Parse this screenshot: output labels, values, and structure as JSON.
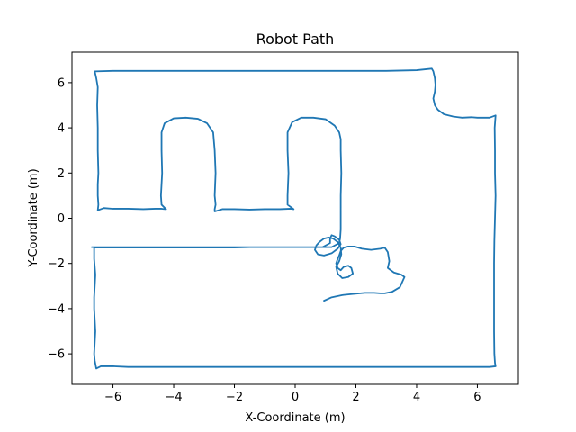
{
  "chart_data": {
    "type": "line",
    "title": "Robot Path",
    "xlabel": "X-Coordinate (m)",
    "ylabel": "Y-Coordinate (m)",
    "xlim": [
      -7.35,
      7.35
    ],
    "ylim": [
      -7.35,
      7.35
    ],
    "xticks": [
      -6,
      -4,
      -2,
      0,
      2,
      4,
      6
    ],
    "yticks": [
      -6,
      -4,
      -2,
      0,
      2,
      4,
      6
    ],
    "xtick_labels": [
      "−6",
      "−4",
      "−2",
      "0",
      "2",
      "4",
      "6"
    ],
    "ytick_labels": [
      "−6",
      "−4",
      "−2",
      "0",
      "2",
      "4",
      "6"
    ],
    "grid": false,
    "color": "#1f77b4",
    "series": [
      {
        "x": [
          0.95,
          1.2,
          1.55,
          1.9,
          2.3,
          2.6,
          2.8,
          2.95,
          3.2,
          3.45,
          3.6,
          3.5,
          3.25,
          3.05,
          3.1,
          3.05,
          2.95,
          2.8,
          2.5,
          2.2,
          1.95,
          1.75,
          1.6,
          1.5,
          1.45,
          1.4,
          1.35,
          1.4,
          1.5,
          1.6,
          1.75,
          1.85,
          1.9,
          1.75,
          1.55,
          1.4,
          1.35,
          1.45,
          1.52,
          1.5,
          1.4,
          1.25,
          1.1,
          0.95,
          0.8,
          0.7,
          0.65,
          0.75,
          0.95,
          1.2,
          1.4,
          1.5,
          1.45,
          1.3,
          1.2,
          1.15,
          1.15,
          0.9,
          0.5,
          0.0,
          -0.5,
          -1.0,
          -1.5,
          -2.0,
          -2.5,
          -3.0,
          -3.5,
          -4.0,
          -4.5,
          -5.0,
          -5.5,
          -6.0,
          -6.5,
          -6.62,
          -6.62,
          -6.58,
          -6.6,
          -6.62,
          -6.62,
          -6.6,
          -6.58,
          -6.6,
          -6.62,
          -6.6,
          -6.55,
          -6.4,
          -6.0,
          -5.5,
          -5.0,
          -4.0,
          -3.0,
          -2.0,
          -1.0,
          0.0,
          1.0,
          2.0,
          3.0,
          4.0,
          5.0,
          6.0,
          6.4,
          6.6,
          6.58,
          6.56,
          6.55,
          6.55,
          6.55,
          6.55,
          6.56,
          6.58,
          6.6,
          6.58,
          6.58,
          6.57,
          6.6,
          6.4,
          6.0,
          5.8,
          5.5,
          5.2,
          4.9,
          4.7,
          4.6,
          4.55,
          4.6,
          4.62,
          4.6,
          4.55,
          4.5,
          4.0,
          3.0,
          2.0,
          1.0,
          0.0,
          -1.0,
          -2.0,
          -3.0,
          -4.0,
          -5.0,
          -6.0,
          -6.6,
          -6.55,
          -6.5,
          -6.52,
          -6.5,
          -6.5,
          -6.48,
          -6.5,
          -6.5,
          -6.48,
          -6.5,
          -6.3,
          -6.0,
          -5.5,
          -5.0,
          -4.6,
          -4.4,
          -4.25,
          -4.4,
          -4.42,
          -4.38,
          -4.4,
          -4.4,
          -4.3,
          -4.0,
          -3.6,
          -3.2,
          -2.9,
          -2.7,
          -2.65,
          -2.62,
          -2.65,
          -2.62,
          -2.65,
          -2.65,
          -2.4,
          -2.0,
          -1.5,
          -1.0,
          -0.5,
          -0.15,
          -0.05,
          -0.25,
          -0.25,
          -0.22,
          -0.25,
          -0.25,
          -0.1,
          0.2,
          0.6,
          1.0,
          1.3,
          1.45,
          1.5,
          1.5,
          1.52,
          1.5,
          1.5,
          1.5,
          1.48,
          1.45,
          1.2,
          0.6,
          0.0,
          -1.0,
          -2.0,
          -3.0,
          -4.0,
          -5.0,
          -6.0,
          -6.5,
          -6.7
        ],
        "y": [
          -3.65,
          -3.5,
          -3.4,
          -3.35,
          -3.3,
          -3.3,
          -3.32,
          -3.32,
          -3.25,
          -3.05,
          -2.6,
          -2.5,
          -2.4,
          -2.2,
          -1.9,
          -1.5,
          -1.3,
          -1.35,
          -1.4,
          -1.35,
          -1.25,
          -1.25,
          -1.3,
          -1.45,
          -1.65,
          -1.8,
          -2.0,
          -2.2,
          -2.3,
          -2.15,
          -2.1,
          -2.2,
          -2.45,
          -2.6,
          -2.65,
          -2.45,
          -2.15,
          -1.9,
          -1.6,
          -1.3,
          -1.05,
          -0.9,
          -0.85,
          -0.9,
          -1.05,
          -1.2,
          -1.4,
          -1.6,
          -1.65,
          -1.55,
          -1.35,
          -1.15,
          -0.95,
          -0.8,
          -0.75,
          -0.9,
          -1.1,
          -1.28,
          -1.28,
          -1.28,
          -1.28,
          -1.28,
          -1.28,
          -1.3,
          -1.3,
          -1.3,
          -1.3,
          -1.3,
          -1.3,
          -1.3,
          -1.3,
          -1.3,
          -1.3,
          -1.3,
          -1.8,
          -2.5,
          -3.0,
          -3.5,
          -4.0,
          -4.5,
          -5.0,
          -5.5,
          -6.0,
          -6.3,
          -6.65,
          -6.55,
          -6.55,
          -6.58,
          -6.58,
          -6.58,
          -6.58,
          -6.58,
          -6.58,
          -6.58,
          -6.58,
          -6.58,
          -6.58,
          -6.58,
          -6.58,
          -6.58,
          -6.58,
          -6.55,
          -6.4,
          -6.0,
          -5.0,
          -4.0,
          -3.0,
          -2.0,
          -1.0,
          0.0,
          1.0,
          2.0,
          3.0,
          4.0,
          4.55,
          4.45,
          4.45,
          4.47,
          4.45,
          4.5,
          4.6,
          4.8,
          5.0,
          5.3,
          5.6,
          5.9,
          6.2,
          6.5,
          6.62,
          6.55,
          6.52,
          6.52,
          6.52,
          6.52,
          6.52,
          6.52,
          6.52,
          6.52,
          6.52,
          6.52,
          6.5,
          6.2,
          5.8,
          5.0,
          4.0,
          3.0,
          2.0,
          1.5,
          1.0,
          0.6,
          0.35,
          0.45,
          0.42,
          0.42,
          0.4,
          0.42,
          0.42,
          0.4,
          0.6,
          1.0,
          2.0,
          3.0,
          3.8,
          4.2,
          4.42,
          4.45,
          4.4,
          4.2,
          3.8,
          3.0,
          2.0,
          1.0,
          0.6,
          0.4,
          0.3,
          0.4,
          0.4,
          0.38,
          0.4,
          0.4,
          0.42,
          0.4,
          0.6,
          1.0,
          2.0,
          3.0,
          3.8,
          4.25,
          4.45,
          4.45,
          4.38,
          4.1,
          3.8,
          3.5,
          3.0,
          2.0,
          1.0,
          0.0,
          -0.5,
          -0.9,
          -1.1,
          -1.28,
          -1.28,
          -1.28,
          -1.28,
          -1.28,
          -1.28,
          -1.28,
          -1.28,
          -1.28,
          -1.28,
          -1.28
        ]
      }
    ]
  }
}
